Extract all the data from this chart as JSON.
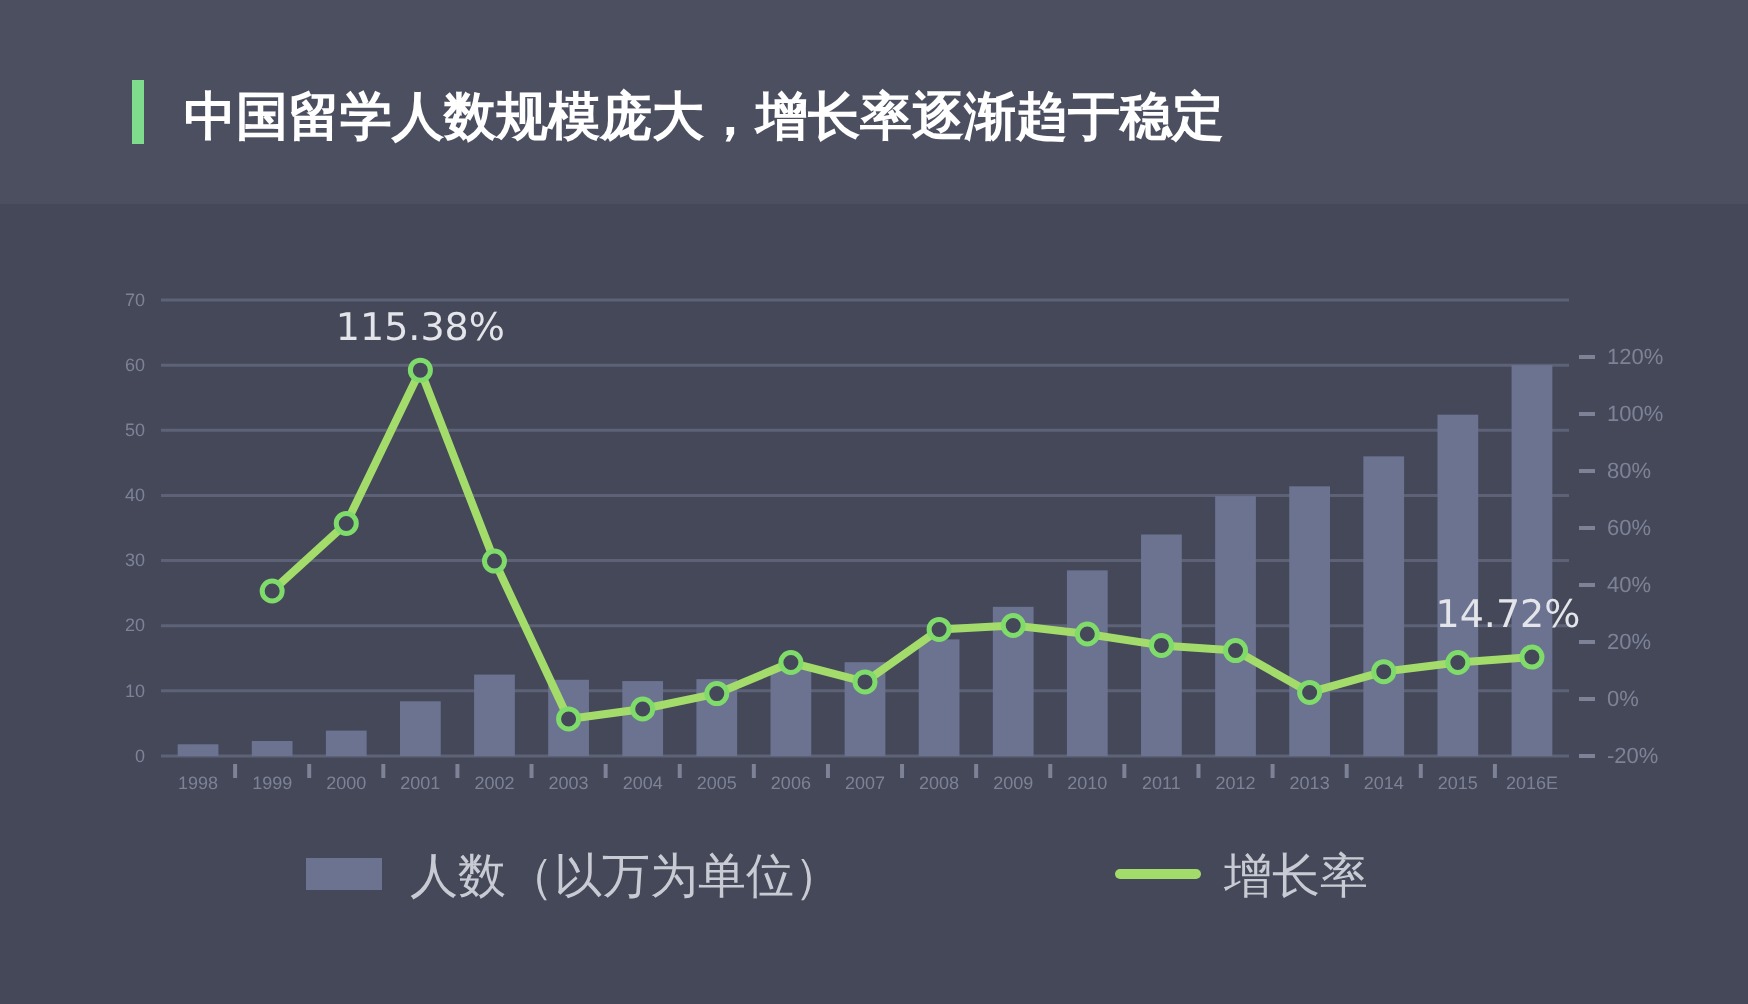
{
  "chart_data": {
    "type": "bar",
    "title": "中国留学人数规模庞大，增长率逐渐趋于稳定",
    "categories": [
      "1998",
      "1999",
      "2000",
      "2001",
      "2002",
      "2003",
      "2004",
      "2005",
      "2006",
      "2007",
      "2008",
      "2009",
      "2010",
      "2011",
      "2012",
      "2013",
      "2014",
      "2015",
      "2016E"
    ],
    "series": [
      {
        "name": "人数（以万为单位）",
        "color": "#6b7391",
        "values": [
          1.8,
          2.3,
          3.9,
          8.4,
          12.5,
          11.7,
          11.5,
          11.8,
          13.4,
          14.4,
          17.9,
          22.9,
          28.5,
          34.0,
          39.9,
          41.4,
          46.0,
          52.4,
          60.0
        ]
      },
      {
        "name": "增长率",
        "type": "line",
        "axis": "y2",
        "color": "#a3dc6b",
        "marker": "circle",
        "values": [
          null,
          37.9,
          61.6,
          115.38,
          48.4,
          -7,
          -3.5,
          1.9,
          12.8,
          6.0,
          24.4,
          25.8,
          22.8,
          18.8,
          17,
          2.3,
          9.6,
          12.8,
          14.72
        ],
        "value_labels": [
          null,
          null,
          null,
          "115.38%",
          null,
          null,
          null,
          null,
          null,
          null,
          null,
          null,
          null,
          null,
          null,
          null,
          null,
          null,
          "14.72%"
        ]
      }
    ],
    "ylim": [
      0,
      70
    ],
    "yticks": [
      0,
      10,
      20,
      30,
      40,
      50,
      60,
      70
    ],
    "y2lim": [
      -20,
      140
    ],
    "y2ticks": [
      {
        "value": -20,
        "label": "-20%"
      },
      {
        "value": 0,
        "label": "0%"
      },
      {
        "value": 20,
        "label": "20%"
      },
      {
        "value": 40,
        "label": "40%"
      },
      {
        "value": 60,
        "label": "60%"
      },
      {
        "value": 80,
        "label": "80%"
      },
      {
        "value": 100,
        "label": "100%"
      },
      {
        "value": 120,
        "label": "120%"
      }
    ],
    "grid": "y",
    "legend": "bottom"
  }
}
